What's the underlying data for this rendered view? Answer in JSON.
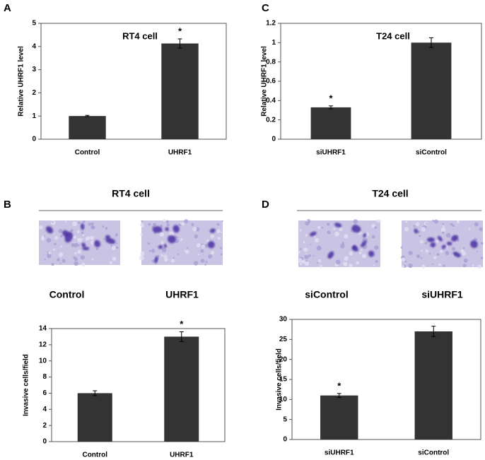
{
  "panels": [
    {
      "label": "A"
    },
    {
      "label": "C"
    },
    {
      "label": "B",
      "heading": "RT4 cell",
      "images": [
        "Control",
        "UHRF1"
      ]
    },
    {
      "label": "D",
      "heading": "T24 cell",
      "images": [
        "siControl",
        "siUHRF1"
      ]
    }
  ],
  "chart_data": [
    {
      "type": "bar",
      "title": "RT4 cell",
      "y_label": "Relative UHRF1 level",
      "categories": [
        "Control",
        "UHRF1"
      ],
      "values": [
        1.0,
        4.13
      ],
      "errors": [
        0.03,
        0.2
      ],
      "color": "#333333",
      "annotations": [
        {
          "text": "*",
          "x": "UHRF1"
        }
      ],
      "ylim": [
        0,
        5
      ],
      "yticks": [
        0,
        1,
        2,
        3,
        4,
        5
      ]
    },
    {
      "type": "bar",
      "title": "T24 cell",
      "y_label": "Relative UHRF1 level",
      "categories": [
        "siUHRF1",
        "siControl"
      ],
      "values": [
        0.33,
        1.0
      ],
      "errors": [
        0.015,
        0.05
      ],
      "color": "#333333",
      "annotations": [
        {
          "text": "*",
          "x": "siUHRF1"
        }
      ],
      "ylim": [
        0,
        1.2
      ],
      "yticks": [
        0,
        0.2,
        0.4,
        0.6,
        0.8,
        1,
        1.2
      ]
    },
    {
      "type": "bar",
      "y_label": "Invasive cells/field",
      "categories": [
        "Control",
        "UHRF1"
      ],
      "values": [
        6,
        13
      ],
      "errors": [
        0.3,
        0.6
      ],
      "color": "#333333",
      "annotations": [
        {
          "text": "*",
          "x": "UHRF1"
        }
      ],
      "ylim": [
        0,
        14
      ],
      "yticks": [
        0,
        2,
        4,
        6,
        8,
        10,
        12,
        14
      ]
    },
    {
      "type": "bar",
      "y_label": "Invasive cells/field",
      "categories": [
        "siUHRF1",
        "siControl"
      ],
      "values": [
        11,
        27
      ],
      "errors": [
        0.5,
        1.3
      ],
      "color": "#333333",
      "annotations": [
        {
          "text": "*",
          "x": "siUHRF1"
        }
      ],
      "ylim": [
        0,
        30
      ],
      "yticks": [
        0,
        5,
        10,
        15,
        20,
        25,
        30
      ]
    }
  ]
}
